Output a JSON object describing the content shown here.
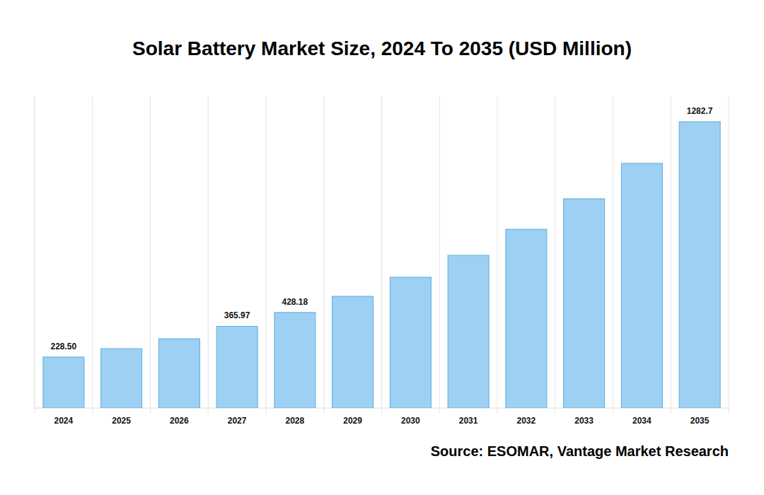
{
  "chart_data": {
    "type": "bar",
    "title": "Solar Battery Market Size, 2024 To 2035 (USD Million)",
    "source": "Source: ESOMAR, Vantage Market Research",
    "categories": [
      "2024",
      "2025",
      "2026",
      "2027",
      "2028",
      "2029",
      "2030",
      "2031",
      "2032",
      "2033",
      "2034",
      "2035"
    ],
    "values": [
      228.5,
      266,
      310.4,
      365.97,
      428.18,
      500.5,
      586,
      684,
      801,
      937.6,
      1096,
      1282.7
    ],
    "value_labels": [
      "228.50",
      null,
      null,
      "365.97",
      "428.18",
      null,
      null,
      null,
      null,
      null,
      null,
      "1282.7"
    ],
    "color": "#9dd0f3",
    "ylim": [
      0,
      1397
    ],
    "grid": true,
    "data_labels": true,
    "tick_labels": "x"
  }
}
